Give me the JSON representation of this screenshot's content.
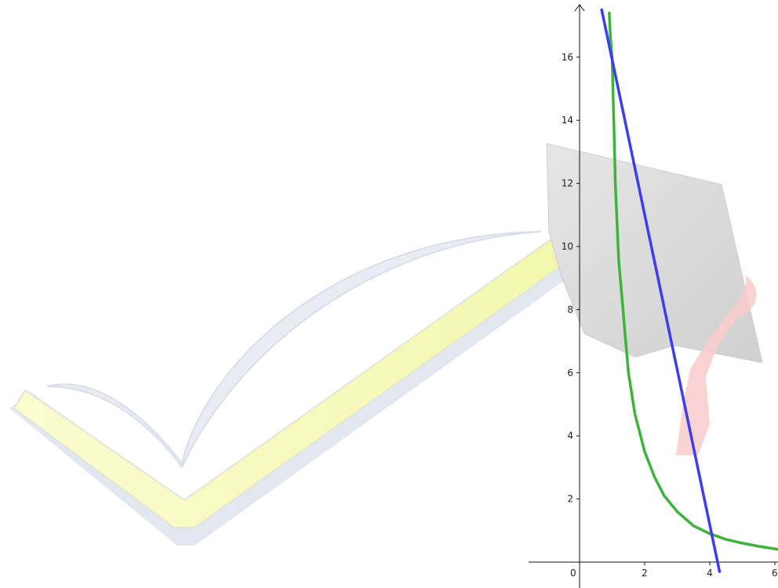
{
  "chart_data": {
    "type": "line",
    "title": "",
    "xlabel": "",
    "ylabel": "",
    "xlim": [
      -1.5,
      6.3
    ],
    "ylim": [
      -0.3,
      17.5
    ],
    "grid": false,
    "x_ticks": [
      {
        "value": 0,
        "label": "0"
      },
      {
        "value": 2,
        "label": "2"
      },
      {
        "value": 4,
        "label": "4"
      },
      {
        "value": 6,
        "label": "6"
      }
    ],
    "y_ticks": [
      {
        "value": 2,
        "label": "2"
      },
      {
        "value": 4,
        "label": "4"
      },
      {
        "value": 6,
        "label": "6"
      },
      {
        "value": 8,
        "label": "8"
      },
      {
        "value": 10,
        "label": "10"
      },
      {
        "value": 12,
        "label": "12"
      },
      {
        "value": 14,
        "label": "14"
      },
      {
        "value": 16,
        "label": "16"
      }
    ],
    "series": [
      {
        "kind": "curve",
        "color": "#3cb43c",
        "x": [
          0.91,
          0.95,
          1.0,
          1.05,
          1.1,
          1.2,
          1.3,
          1.4,
          1.5,
          1.7,
          2.0,
          2.3,
          2.6,
          3.0,
          3.5,
          4.0,
          4.5,
          5.0,
          5.5,
          6.0,
          6.3
        ],
        "y": [
          17.4,
          16.6,
          16.0,
          14.0,
          12.0,
          9.6,
          8.4,
          7.2,
          6.0,
          4.7,
          3.5,
          2.7,
          2.1,
          1.6,
          1.15,
          0.9,
          0.72,
          0.6,
          0.5,
          0.42,
          0.38
        ]
      },
      {
        "kind": "line",
        "color": "#3c3cf0",
        "x": [
          0.68,
          4.3
        ],
        "y": [
          17.5,
          -0.3
        ]
      }
    ]
  },
  "decoration": {
    "watermark": "checkmark-and-graduation-cap-logo"
  }
}
